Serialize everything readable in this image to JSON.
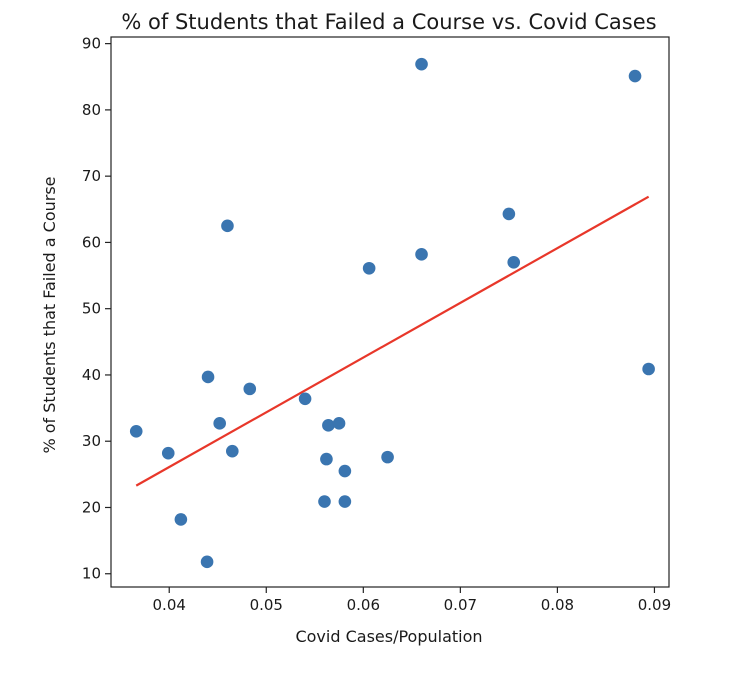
{
  "chart_data": {
    "type": "scatter",
    "title": "% of Students that Failed a Course vs. Covid Cases",
    "xlabel": "Covid Cases/Population",
    "ylabel": "% of Students that Failed a Course",
    "xlim": [
      0.034,
      0.0915
    ],
    "ylim": [
      8.0,
      91.0
    ],
    "xticks": [
      0.04,
      0.05,
      0.06,
      0.07,
      0.08,
      0.09
    ],
    "xtick_labels": [
      "0.04",
      "0.05",
      "0.06",
      "0.07",
      "0.08",
      "0.09"
    ],
    "yticks": [
      10,
      20,
      30,
      40,
      50,
      60,
      70,
      80,
      90
    ],
    "ytick_labels": [
      "10",
      "20",
      "30",
      "40",
      "50",
      "60",
      "70",
      "80",
      "90"
    ],
    "grid": false,
    "legend": "none",
    "colors": {
      "points": "#3a75b0",
      "trend": "#e8372a",
      "axes": "#222222"
    },
    "series": [
      {
        "kind": "scatter",
        "x": [
          0.0366,
          0.0399,
          0.0412,
          0.0439,
          0.044,
          0.0452,
          0.046,
          0.0465,
          0.0483,
          0.054,
          0.056,
          0.0562,
          0.0564,
          0.0575,
          0.0581,
          0.0581,
          0.0606,
          0.0625,
          0.066,
          0.066,
          0.075,
          0.0755,
          0.088,
          0.0894
        ],
        "y": [
          31.5,
          28.2,
          18.2,
          11.8,
          39.7,
          32.7,
          62.5,
          28.5,
          37.9,
          36.4,
          20.9,
          27.3,
          32.4,
          32.7,
          25.5,
          20.9,
          56.1,
          27.6,
          86.9,
          58.2,
          64.3,
          57.0,
          85.1,
          40.9
        ]
      },
      {
        "kind": "line",
        "x": [
          0.0366,
          0.0894
        ],
        "y": [
          23.3,
          66.9
        ]
      }
    ]
  }
}
